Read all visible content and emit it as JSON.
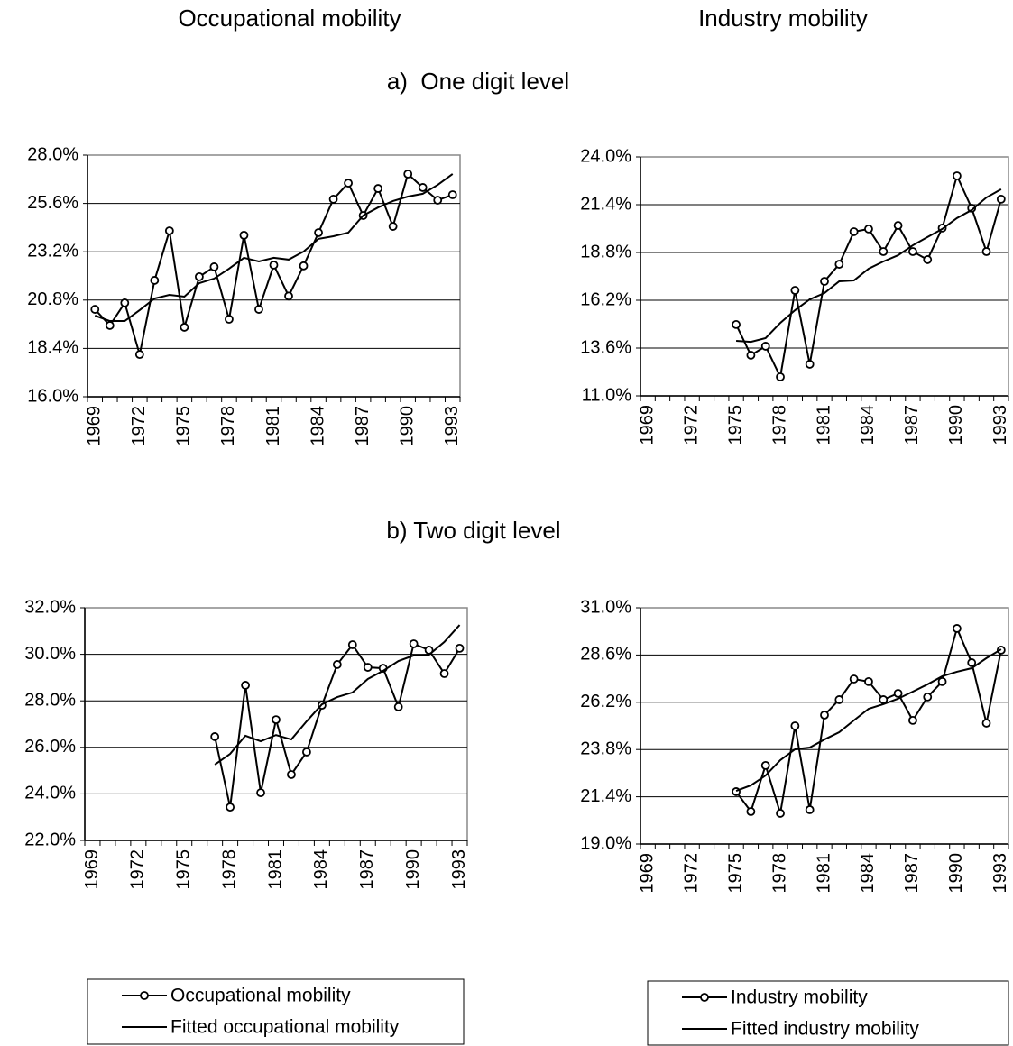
{
  "headers": {
    "columns": [
      "Occupational mobility",
      "Industry mobility"
    ],
    "sections": [
      "a)  One digit level",
      "b) Two digit level"
    ]
  },
  "chart_data": [
    {
      "type": "line",
      "categories": [
        1969,
        null,
        null,
        1972,
        null,
        null,
        1975,
        null,
        null,
        1978,
        null,
        null,
        1981,
        null,
        null,
        1984,
        null,
        null,
        1987,
        null,
        null,
        1990,
        null,
        null,
        1993
      ],
      "series": [
        {
          "name": "Occupational mobility",
          "color": "#000000",
          "marker": "circle",
          "values": [
            20.34,
            19.54,
            20.66,
            18.1,
            21.78,
            24.24,
            19.45,
            21.96,
            22.45,
            19.85,
            24.02,
            20.34,
            22.54,
            21.0,
            22.5,
            24.15,
            25.81,
            26.61,
            25.0,
            26.34,
            24.46,
            27.06,
            26.39,
            25.76,
            26.03
          ]
        },
        {
          "name": "Fitted occupational mobility",
          "color": "#000000",
          "values": [
            20.03,
            19.76,
            19.76,
            20.3,
            20.88,
            21.06,
            20.97,
            21.64,
            21.87,
            22.36,
            22.9,
            22.72,
            22.9,
            22.81,
            23.21,
            23.84,
            23.97,
            24.15,
            25.0,
            25.4,
            25.72,
            25.94,
            26.08,
            26.52,
            27.06
          ]
        }
      ],
      "ylim": [
        16,
        28
      ],
      "yticks": [
        {
          "value": 16,
          "label": "16.0%"
        },
        {
          "value": 18.4,
          "label": "18.4%"
        },
        {
          "value": 20.8,
          "label": "20.8%"
        },
        {
          "value": 23.2,
          "label": "23.2%"
        },
        {
          "value": 25.6,
          "label": "25.6%"
        },
        {
          "value": 28,
          "label": "28.0%"
        }
      ],
      "grid": true
    },
    {
      "type": "line",
      "categories": [
        1969,
        null,
        null,
        1972,
        null,
        null,
        1975,
        null,
        null,
        1978,
        null,
        null,
        1981,
        null,
        null,
        1984,
        null,
        null,
        1987,
        null,
        null,
        1990,
        null,
        null,
        1993
      ],
      "series": [
        {
          "name": "Industry mobility",
          "color": "#000000",
          "marker": "circle",
          "values": [
            null,
            null,
            null,
            null,
            null,
            null,
            14.88,
            13.21,
            13.7,
            12.03,
            16.74,
            12.72,
            17.23,
            18.16,
            19.93,
            20.08,
            18.85,
            20.27,
            18.85,
            18.41,
            20.13,
            22.97,
            21.21,
            18.85,
            21.7
          ]
        },
        {
          "name": "Fitted industry mobility",
          "color": "#000000",
          "values": [
            null,
            null,
            null,
            null,
            null,
            null,
            13.99,
            13.94,
            14.14,
            14.97,
            15.66,
            16.25,
            16.59,
            17.23,
            17.28,
            17.92,
            18.31,
            18.65,
            19.19,
            19.64,
            20.08,
            20.67,
            21.11,
            21.79,
            22.24
          ]
        }
      ],
      "ylim": [
        11,
        24
      ],
      "yticks": [
        {
          "value": 11,
          "label": "11.0%"
        },
        {
          "value": 13.6,
          "label": "13.6%"
        },
        {
          "value": 16.2,
          "label": "16.2%"
        },
        {
          "value": 18.8,
          "label": "18.8%"
        },
        {
          "value": 21.4,
          "label": "21.4%"
        },
        {
          "value": 24,
          "label": "24.0%"
        }
      ],
      "grid": true
    },
    {
      "type": "line",
      "categories": [
        1969,
        null,
        null,
        1972,
        null,
        null,
        1975,
        null,
        null,
        1978,
        null,
        null,
        1981,
        null,
        null,
        1984,
        null,
        null,
        1987,
        null,
        null,
        1990,
        null,
        null,
        1993
      ],
      "series": [
        {
          "name": "Occupational mobility",
          "color": "#000000",
          "marker": "circle",
          "values": [
            null,
            null,
            null,
            null,
            null,
            null,
            null,
            null,
            26.46,
            23.43,
            28.67,
            24.05,
            27.19,
            24.83,
            25.8,
            27.81,
            29.56,
            30.41,
            29.44,
            29.4,
            27.74,
            30.45,
            30.18,
            29.17,
            30.26
          ]
        },
        {
          "name": "Fitted occupational mobility",
          "color": "#000000",
          "values": [
            null,
            null,
            null,
            null,
            null,
            null,
            null,
            null,
            25.26,
            25.72,
            26.5,
            26.26,
            26.53,
            26.34,
            27.12,
            27.85,
            28.16,
            28.36,
            28.94,
            29.29,
            29.71,
            29.95,
            29.98,
            30.53,
            31.26
          ]
        }
      ],
      "ylim": [
        22,
        32
      ],
      "yticks": [
        {
          "value": 22,
          "label": "22.0%"
        },
        {
          "value": 24,
          "label": "24.0%"
        },
        {
          "value": 26,
          "label": "26.0%"
        },
        {
          "value": 28,
          "label": "28.0%"
        },
        {
          "value": 30,
          "label": "30.0%"
        },
        {
          "value": 32,
          "label": "32.0%"
        }
      ],
      "grid": true,
      "legend": "bottom"
    },
    {
      "type": "line",
      "categories": [
        1969,
        null,
        null,
        1972,
        null,
        null,
        1975,
        null,
        null,
        1978,
        null,
        null,
        1981,
        null,
        null,
        1984,
        null,
        null,
        1987,
        null,
        null,
        1990,
        null,
        null,
        1993
      ],
      "series": [
        {
          "name": "Industry mobility",
          "color": "#000000",
          "marker": "circle",
          "values": [
            null,
            null,
            null,
            null,
            null,
            null,
            21.66,
            20.65,
            22.99,
            20.56,
            25.0,
            20.74,
            25.55,
            26.33,
            27.38,
            27.25,
            26.33,
            26.65,
            25.28,
            26.47,
            27.25,
            29.95,
            28.21,
            25.14,
            28.85
          ]
        },
        {
          "name": "Fitted industry mobility",
          "color": "#000000",
          "values": [
            null,
            null,
            null,
            null,
            null,
            null,
            21.7,
            21.98,
            22.48,
            23.26,
            23.81,
            23.9,
            24.31,
            24.68,
            25.28,
            25.87,
            26.1,
            26.38,
            26.74,
            27.11,
            27.52,
            27.75,
            27.93,
            28.44,
            28.89
          ]
        }
      ],
      "ylim": [
        19,
        31
      ],
      "yticks": [
        {
          "value": 19,
          "label": "19.0%"
        },
        {
          "value": 21.4,
          "label": "21.4%"
        },
        {
          "value": 23.8,
          "label": "23.8%"
        },
        {
          "value": 26.2,
          "label": "26.2%"
        },
        {
          "value": 28.6,
          "label": "28.6%"
        },
        {
          "value": 31,
          "label": "31.0%"
        }
      ],
      "grid": true,
      "legend": "bottom"
    }
  ]
}
